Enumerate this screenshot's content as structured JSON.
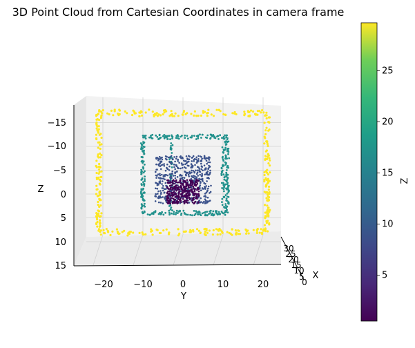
{
  "chart_data": {
    "type": "scatter",
    "projection": "3d",
    "title": "3D Point Cloud from Cartesian Coordinates in camera frame",
    "xlabel": "X",
    "ylabel": "Y",
    "zlabel": "Z",
    "xlim": [
      0,
      30
    ],
    "ylim": [
      -27,
      27
    ],
    "zlim": [
      16,
      -18
    ],
    "x_ticks": [
      "0",
      "5",
      "10",
      "15",
      "20",
      "25",
      "30"
    ],
    "y_ticks": [
      "−20",
      "−10",
      "0",
      "10",
      "20"
    ],
    "z_ticks": [
      "−15",
      "−10",
      "−5",
      "0",
      "5",
      "10",
      "15"
    ],
    "grid": true,
    "colormap": "viridis",
    "colorbar": {
      "label": "Z",
      "range": [
        0.5,
        29.7
      ],
      "ticks": [
        "5",
        "10",
        "15",
        "20",
        "25"
      ]
    },
    "point_groups": [
      {
        "depth_z": 29.5,
        "color": "#fde725",
        "y_range": [
          -21,
          21
        ],
        "z_range": [
          -17,
          8
        ],
        "shape": "outer frame"
      },
      {
        "depth_z": 13.5,
        "color": "#21918c",
        "y_range": [
          -10,
          11
        ],
        "z_range": [
          -12,
          4
        ],
        "shape": "middle frame"
      },
      {
        "depth_z": 8.0,
        "color": "#3b528b",
        "y_range": [
          -7,
          7
        ],
        "z_range": [
          -8,
          2
        ],
        "shape": "inner block"
      },
      {
        "depth_z": 2.5,
        "color": "#440154",
        "y_range": [
          -4,
          4
        ],
        "z_range": [
          -3,
          2
        ],
        "shape": "center cluster"
      }
    ]
  }
}
